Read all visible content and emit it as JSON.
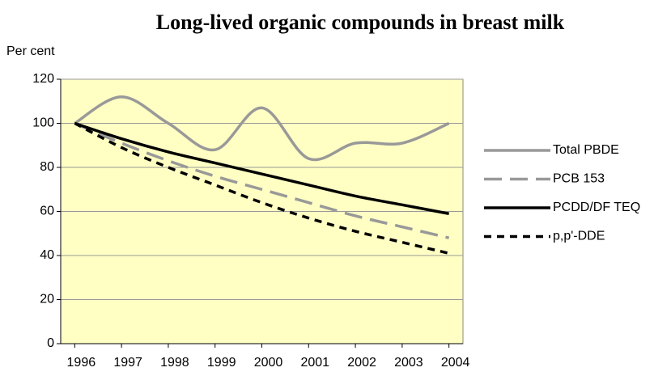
{
  "chart_data": {
    "type": "line",
    "title": "Long-lived organic compounds in breast milk",
    "y_label": "Per cent",
    "x": [
      1996,
      1997,
      1998,
      1999,
      2000,
      2001,
      2002,
      2003,
      2004
    ],
    "xlim": [
      1995.7,
      2004.3
    ],
    "xticks": [
      1996,
      1997,
      1998,
      1999,
      2000,
      2001,
      2002,
      2003,
      2004
    ],
    "ylim": [
      0,
      120
    ],
    "yticks": [
      0,
      20,
      40,
      60,
      80,
      100,
      120
    ],
    "grid": true,
    "legend": "right",
    "series": [
      {
        "name": "Total PBDE",
        "color": "#999999",
        "dash": "solid",
        "values": [
          100,
          112,
          100,
          88,
          107,
          84,
          91,
          91,
          100
        ]
      },
      {
        "name": "PCB 153",
        "color": "#999999",
        "dash": "long",
        "values": [
          100,
          91,
          83,
          76,
          70,
          64,
          58,
          53,
          48
        ]
      },
      {
        "name": "PCDD/DF TEQ",
        "color": "#000000",
        "dash": "solid",
        "values": [
          100,
          93,
          87,
          82,
          77,
          72,
          67,
          63,
          59
        ]
      },
      {
        "name": "p,p'-DDE",
        "color": "#000000",
        "dash": "short",
        "values": [
          100,
          89,
          80,
          72,
          64,
          57,
          51,
          46,
          41
        ]
      }
    ]
  }
}
